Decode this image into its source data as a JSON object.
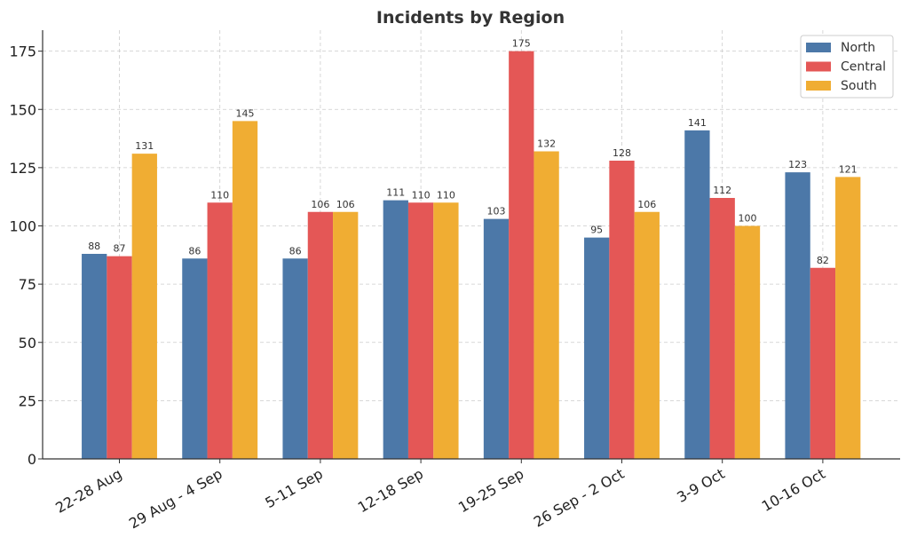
{
  "chart_data": {
    "type": "bar",
    "title": "Incidents by Region",
    "xlabel": "",
    "ylabel": "",
    "categories": [
      "22-28 Aug",
      "29 Aug - 4 Sep",
      "5-11 Sep",
      "12-18 Sep",
      "19-25 Sep",
      "26 Sep - 2 Oct",
      "3-9 Oct",
      "10-16 Oct"
    ],
    "series": [
      {
        "name": "North",
        "color": "#4c78a8",
        "values": [
          88,
          86,
          86,
          111,
          103,
          95,
          141,
          123
        ]
      },
      {
        "name": "Central",
        "color": "#e45756",
        "values": [
          87,
          110,
          106,
          110,
          175,
          128,
          112,
          82
        ]
      },
      {
        "name": "South",
        "color": "#f0ad33",
        "values": [
          131,
          145,
          106,
          110,
          132,
          106,
          100,
          121
        ]
      }
    ],
    "ylim": [
      0,
      184
    ],
    "yticks": [
      0,
      25,
      50,
      75,
      100,
      125,
      150,
      175
    ],
    "grid": true,
    "legend_position": "top-right",
    "data_labels": true
  }
}
